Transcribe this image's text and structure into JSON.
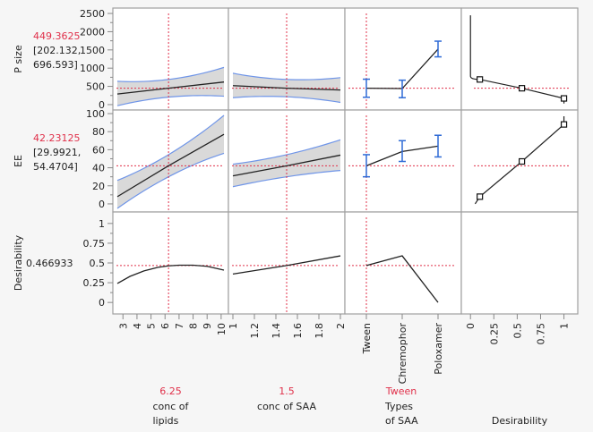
{
  "chart_data": {
    "type": "prediction-profiler",
    "colors": {
      "current_marker": "#e0304a",
      "confidence_band": "#d9d9d9",
      "band_edge": "#6f95e8",
      "error_bar": "#2f6bd6",
      "curve": "#222222",
      "frame": "#a0a0a0"
    },
    "factors": [
      {
        "name": "conc of lipids",
        "label_lines": [
          "conc of",
          "lipids"
        ],
        "current": "6.25",
        "type": "continuous",
        "range": [
          2.6,
          10.2
        ],
        "ticks": [
          3,
          4,
          5,
          6,
          7,
          8,
          9,
          10
        ]
      },
      {
        "name": "conc of SAA",
        "label_lines": [
          "conc of SAA"
        ],
        "current": "1.5",
        "type": "continuous",
        "range": [
          1.0,
          2.0
        ],
        "ticks": [
          1,
          1.2,
          1.4,
          1.6,
          1.8,
          2
        ],
        "tick_labels": [
          "1",
          "1.2",
          "1.4",
          "1.6",
          "1.8",
          "2"
        ]
      },
      {
        "name": "Types of SAA",
        "label_lines": [
          "Types",
          "of SAA"
        ],
        "current": "Tween",
        "type": "categorical",
        "levels": [
          "Tween",
          "Chremophor",
          "Poloxamer"
        ]
      },
      {
        "name": "Desirability",
        "label_lines": [
          "Desirability"
        ],
        "current": "",
        "type": "desirability",
        "range": [
          -0.05,
          1.1
        ],
        "ticks": [
          0,
          0.25,
          0.5,
          0.75,
          1
        ],
        "tick_labels": [
          "0",
          "0.25",
          "0.5",
          "0.75",
          "1"
        ]
      }
    ],
    "responses": [
      {
        "name": "P size",
        "predicted": "449.3625",
        "ci_lines": [
          "[202.132,",
          "696.593]"
        ],
        "range": [
          -50,
          2550
        ],
        "ticks": [
          0,
          500,
          1000,
          1500,
          2000,
          2500
        ],
        "tick_labels": [
          "0",
          "500",
          "1000",
          "1500",
          "2000",
          "2500"
        ],
        "current_value": 449,
        "profiles": [
          {
            "x": [
              2.6,
              6.25,
              10.2
            ],
            "y": [
              290,
              449,
              620
            ],
            "lo": [
              -30,
              205,
              230
            ],
            "hi": [
              640,
              690,
              1020
            ]
          },
          {
            "x": [
              1.0,
              1.5,
              2.0
            ],
            "y": [
              520,
              449,
              400
            ],
            "lo": [
              190,
              215,
              60
            ],
            "hi": [
              860,
              690,
              740
            ]
          },
          {
            "levels": [
              "Tween",
              "Chremophor",
              "Poloxamer"
            ],
            "y": [
              449,
              440,
              1520
            ],
            "lo": [
              202,
              190,
              1310
            ],
            "hi": [
              697,
              670,
              1740
            ]
          }
        ],
        "desirability_fn": {
          "points": [
            [
              0.1,
              690
            ],
            [
              0.55,
              449
            ],
            [
              1.0,
              170
            ]
          ],
          "extends": [
            [
              0.0,
              2450
            ],
            [
              0.0,
              780
            ],
            [
              1.0,
              30
            ]
          ]
        }
      },
      {
        "name": "EE",
        "predicted": "42.23125",
        "ci_lines": [
          "[29.9921,",
          "54.4704]"
        ],
        "range": [
          -5,
          100
        ],
        "ticks": [
          0,
          20,
          40,
          60,
          80,
          100
        ],
        "tick_labels": [
          "0",
          "20",
          "40",
          "60",
          "80",
          "100"
        ],
        "current_value": 42.2,
        "profiles": [
          {
            "x": [
              2.6,
              6.25,
              10.2
            ],
            "y": [
              8,
              42.2,
              77
            ],
            "lo": [
              -5,
              30,
              56
            ],
            "hi": [
              26,
              54.5,
              98
            ]
          },
          {
            "x": [
              1.0,
              1.5,
              2.0
            ],
            "y": [
              31,
              42.2,
              54
            ],
            "lo": [
              19,
              30,
              37
            ],
            "hi": [
              44,
              54.5,
              71
            ]
          },
          {
            "levels": [
              "Tween",
              "Chremophor",
              "Poloxamer"
            ],
            "y": [
              42.2,
              58,
              64
            ],
            "lo": [
              30,
              47,
              52
            ],
            "hi": [
              54.5,
              70,
              76
            ]
          }
        ],
        "desirability_fn": {
          "points": [
            [
              0.1,
              8
            ],
            [
              0.55,
              47
            ],
            [
              1.0,
              88
            ]
          ],
          "extends": [
            [
              0.05,
              0
            ],
            [
              1.0,
              97
            ]
          ]
        }
      },
      {
        "name": "Desirability",
        "predicted": "0.466933",
        "ci_lines": [],
        "range": [
          -0.1,
          1.1
        ],
        "ticks": [
          0,
          0.25,
          0.5,
          0.75,
          1
        ],
        "tick_labels": [
          "0",
          "0.25",
          "0.5",
          "0.75",
          "1"
        ],
        "current_value": 0.4669,
        "profiles": [
          {
            "x": [
              2.6,
              3.5,
              4.5,
              5.5,
              6.25,
              7,
              8,
              9,
              10.2
            ],
            "y": [
              0.24,
              0.33,
              0.4,
              0.445,
              0.463,
              0.472,
              0.472,
              0.458,
              0.41
            ]
          },
          {
            "x": [
              1.0,
              1.5,
              2.0
            ],
            "y": [
              0.36,
              0.467,
              0.59
            ]
          },
          {
            "levels": [
              "Tween",
              "Chremophor",
              "Poloxamer"
            ],
            "y": [
              0.467,
              0.59,
              0.0
            ]
          }
        ]
      }
    ]
  }
}
